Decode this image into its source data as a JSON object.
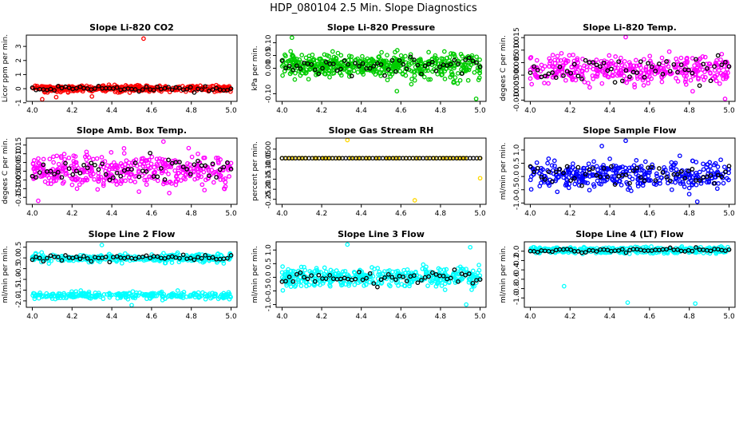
{
  "figure": {
    "title": "HDP_080104  2.5 Min. Slope Diagnostics",
    "colors": {
      "emphasis": "#000000"
    }
  },
  "chart_data": [
    {
      "type": "scatter",
      "title": "Slope Li-820 CO2",
      "ylabel": "Licor ppm per min.",
      "color": "#ff0000",
      "xlim": [
        3.97,
        5.03
      ],
      "ylim": [
        -0.9,
        3.8
      ],
      "xticks": [
        "4.0",
        "4.2",
        "4.4",
        "4.6",
        "4.8",
        "5.0"
      ],
      "yticks": [
        "-1",
        "0",
        "1",
        "2",
        "3"
      ],
      "ytick_values": [
        -1,
        0,
        1,
        2,
        3
      ],
      "pattern": {
        "n": 420,
        "center": 0.0,
        "spread": 0.22,
        "outliers": [
          [
            4.56,
            3.55
          ],
          [
            4.05,
            -0.75
          ],
          [
            4.12,
            -0.6
          ],
          [
            4.3,
            -0.55
          ]
        ]
      }
    },
    {
      "type": "scatter",
      "title": "Slope Li-820 Pressure",
      "ylabel": "kPa per min.",
      "color": "#00cc00",
      "xlim": [
        3.97,
        5.03
      ],
      "ylim": [
        -0.13,
        0.13
      ],
      "xticks": [
        "4.0",
        "4.2",
        "4.4",
        "4.6",
        "4.8",
        "5.0"
      ],
      "yticks": [
        "-0.10",
        "0.00",
        "0.05",
        "0.10"
      ],
      "ytick_values": [
        -0.1,
        0.0,
        0.05,
        0.1
      ],
      "pattern": {
        "n": 540,
        "center": 0.01,
        "spread": 0.045,
        "outliers": [
          [
            4.58,
            -0.09
          ],
          [
            4.98,
            -0.12
          ],
          [
            4.05,
            0.12
          ]
        ]
      }
    },
    {
      "type": "scatter",
      "title": "Slope Li-820 Temp.",
      "ylabel": "degees C per min.",
      "color": "#ff00ff",
      "xlim": [
        3.97,
        5.03
      ],
      "ylim": [
        -0.0105,
        0.016
      ],
      "xticks": [
        "4.0",
        "4.2",
        "4.4",
        "4.6",
        "4.8",
        "5.0"
      ],
      "yticks": [
        "-0.010",
        "-0.005",
        "0.000",
        "0.005",
        "0.010",
        "0.015"
      ],
      "ytick_values": [
        -0.01,
        -0.005,
        0.0,
        0.005,
        0.01,
        0.015
      ],
      "pattern": {
        "n": 380,
        "center": 0.002,
        "spread": 0.0055,
        "outliers": [
          [
            4.98,
            -0.0095
          ],
          [
            4.48,
            0.0152
          ]
        ]
      }
    },
    {
      "type": "scatter",
      "title": "Slope Amb. Box Temp.",
      "ylabel": "degees C per min.",
      "color": "#ff00ff",
      "xlim": [
        3.97,
        5.03
      ],
      "ylim": [
        -0.19,
        0.19
      ],
      "xticks": [
        "4.0",
        "4.2",
        "4.4",
        "4.6",
        "4.8",
        "5.0"
      ],
      "yticks": [
        "-0.15",
        "-0.10",
        "-0.05",
        "0.00",
        "0.05",
        "0.10",
        "0.15"
      ],
      "ytick_values": [
        -0.15,
        -0.1,
        -0.05,
        0.0,
        0.05,
        0.1,
        0.15
      ],
      "pattern": {
        "n": 400,
        "center": 0.0,
        "spread": 0.09,
        "outliers": [
          [
            4.03,
            -0.17
          ],
          [
            4.66,
            0.17
          ]
        ]
      }
    },
    {
      "type": "scatter",
      "title": "Slope Gas Stream RH",
      "ylabel": "percent per min.",
      "color": "#ffd700",
      "xlim": [
        3.97,
        5.03
      ],
      "ylim": [
        -0.275,
        0.055
      ],
      "xticks": [
        "4.0",
        "4.2",
        "4.4",
        "4.6",
        "4.8",
        "5.0"
      ],
      "yticks": [
        "-0.25",
        "-0.20",
        "-0.15",
        "-0.10",
        "-0.05",
        "0.00"
      ],
      "ytick_values": [
        -0.25,
        -0.2,
        -0.15,
        -0.1,
        -0.05,
        0.0
      ],
      "pattern": {
        "n": 60,
        "center": -0.045,
        "spread": 0.0,
        "outliers": [
          [
            4.33,
            0.045
          ],
          [
            4.67,
            -0.255
          ],
          [
            5.0,
            -0.145
          ],
          [
            4.0,
            -0.045
          ]
        ]
      }
    },
    {
      "type": "scatter",
      "title": "Slope Sample Flow",
      "ylabel": "ml/min per min.",
      "color": "#0000ff",
      "xlim": [
        3.97,
        5.03
      ],
      "ylim": [
        -1.05,
        1.45
      ],
      "xticks": [
        "4.0",
        "4.2",
        "4.4",
        "4.6",
        "4.8",
        "5.0"
      ],
      "yticks": [
        "-1.0",
        "-0.5",
        "0.0",
        "0.5",
        "1.0"
      ],
      "ytick_values": [
        -1.0,
        -0.5,
        0.0,
        0.5,
        1.0
      ],
      "pattern": {
        "n": 360,
        "center": 0.05,
        "spread": 0.5,
        "outliers": [
          [
            4.48,
            1.35
          ],
          [
            4.84,
            -0.95
          ],
          [
            4.36,
            1.15
          ]
        ]
      }
    },
    {
      "type": "scatter",
      "title": "Slope Line 2 Flow",
      "ylabel": "ml/min per min.",
      "color": "#00ffff",
      "xlim": [
        3.97,
        5.03
      ],
      "ylim": [
        -2.3,
        0.75
      ],
      "xticks": [
        "4.0",
        "4.2",
        "4.4",
        "4.6",
        "4.8",
        "5.0"
      ],
      "yticks": [
        "-2.0",
        "-1.5",
        "-1.0",
        "-0.5",
        "0.0",
        "0.5"
      ],
      "ytick_values": [
        -2.0,
        -1.5,
        -1.0,
        -0.5,
        0.0,
        0.5
      ],
      "pattern": {
        "n": 320,
        "center": 0.0,
        "spread": 0.18,
        "second_band": -1.75,
        "second_n": 260,
        "outliers": [
          [
            4.35,
            0.6
          ],
          [
            4.5,
            -2.2
          ]
        ]
      }
    },
    {
      "type": "scatter",
      "title": "Slope Line 3 Flow",
      "ylabel": "ml/min per min.",
      "color": "#00ffff",
      "xlim": [
        3.97,
        5.03
      ],
      "ylim": [
        -1.1,
        1.3
      ],
      "xticks": [
        "4.0",
        "4.2",
        "4.4",
        "4.6",
        "4.8",
        "5.0"
      ],
      "yticks": [
        "-1.0",
        "-0.5",
        "0.0",
        "0.5",
        "1.0"
      ],
      "ytick_values": [
        -1.0,
        -0.5,
        0.0,
        0.5,
        1.0
      ],
      "pattern": {
        "n": 420,
        "center": 0.0,
        "spread": 0.32,
        "outliers": [
          [
            4.33,
            1.2
          ],
          [
            4.93,
            -1.0
          ],
          [
            4.95,
            1.1
          ]
        ]
      }
    },
    {
      "type": "scatter",
      "title": "Slope Line 4 (LT) Flow",
      "ylabel": "ml/min per min.",
      "color": "#00ffff",
      "xlim": [
        3.97,
        5.03
      ],
      "ylim": [
        -1.2,
        0.2
      ],
      "xticks": [
        "4.0",
        "4.2",
        "4.4",
        "4.6",
        "4.8",
        "5.0"
      ],
      "yticks": [
        "-1.0",
        "-0.8",
        "-0.6",
        "-0.4",
        "-0.2",
        "0.0"
      ],
      "ytick_values": [
        -1.0,
        -0.8,
        -0.6,
        -0.4,
        -0.2,
        0.0
      ],
      "pattern": {
        "n": 420,
        "center": 0.02,
        "spread": 0.06,
        "outliers": [
          [
            4.17,
            -0.75
          ],
          [
            4.49,
            -1.1
          ],
          [
            4.83,
            -1.12
          ]
        ]
      }
    }
  ]
}
